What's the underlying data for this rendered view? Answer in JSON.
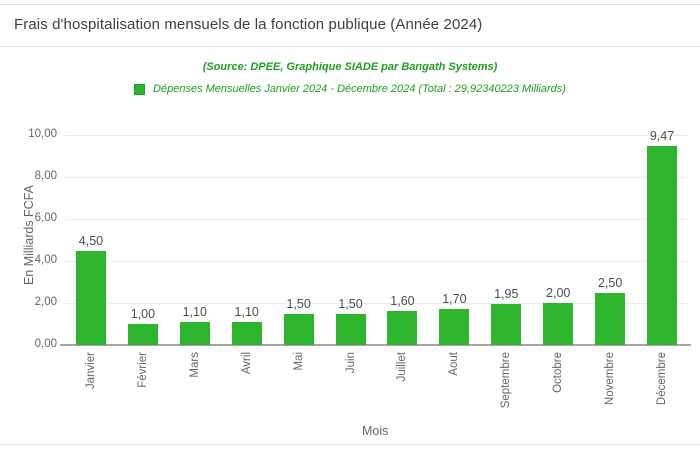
{
  "header": {
    "title": "Frais d'hospitalisation mensuels de la fonction publique (Année 2024)"
  },
  "subtitle": "(Source: DPEE, Graphique SIADE par Bangath Systems)",
  "legend": {
    "label": "Dépenses Mensuelles Janvier 2024 - Décembre 2024 (Total : 29,92340223 Milliards)"
  },
  "colors": {
    "bar": "#2eb52e",
    "accent_text": "#1e9e1e",
    "axis_text": "#666666",
    "data_label": "#4d4d4d",
    "grid": "#ececec",
    "axis_line": "#a6a6a6"
  },
  "chart_data": {
    "type": "bar",
    "categories": [
      "Janvier",
      "Février",
      "Mars",
      "Avril",
      "Mai",
      "Juin",
      "Juillet",
      "Aout",
      "Septembre",
      "Octobre",
      "Novembre",
      "Décembre"
    ],
    "values": [
      4.5,
      1.0,
      1.1,
      1.1,
      1.5,
      1.5,
      1.6,
      1.7,
      1.95,
      2.0,
      2.5,
      9.47
    ],
    "point_labels": [
      "4,50",
      "1,00",
      "1,10",
      "1,10",
      "1,50",
      "1,50",
      "1,60",
      "1,70",
      "1,95",
      "2,00",
      "2,50",
      "9,47"
    ],
    "series_name": "Dépenses Mensuelles Janvier 2024 - Décembre 2024 (Total : 29,92340223 Milliards)",
    "xlabel": "Mois",
    "ylabel": "En Milliards FCFA",
    "ytick_labels": [
      "0,00",
      "2,00",
      "4,00",
      "6,00",
      "8,00",
      "10,00"
    ],
    "ylim": [
      0,
      10
    ],
    "grid": true,
    "legend_position": "top",
    "bar_color": "#2eb52e"
  }
}
